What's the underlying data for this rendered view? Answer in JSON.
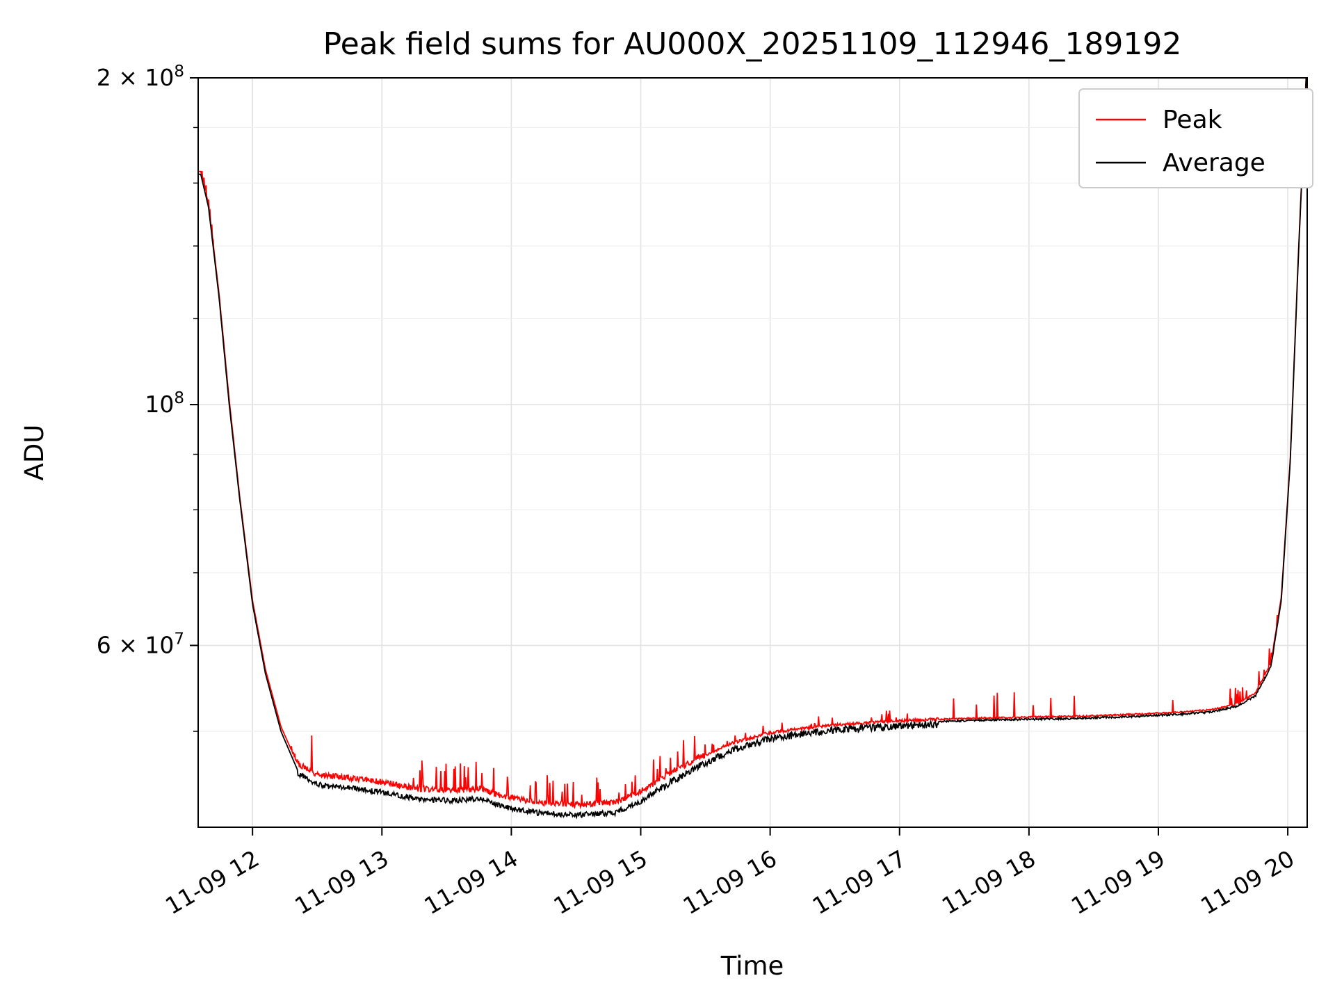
{
  "figure": {
    "title": "Peak field sums for AU000X_20251109_112946_189192",
    "xlabel": "Time",
    "ylabel": "ADU",
    "background": "#ffffff"
  },
  "chart_data": {
    "type": "line",
    "title": "Peak field sums for AU000X_20251109_112946_189192",
    "xlabel": "Time",
    "ylabel": "ADU",
    "x_axis": {
      "unit": "time of day on 11-09 (hours)",
      "range": [
        11.58,
        20.15
      ],
      "ticks": [
        {
          "value": 12,
          "label": "11-09 12"
        },
        {
          "value": 13,
          "label": "11-09 13"
        },
        {
          "value": 14,
          "label": "11-09 14"
        },
        {
          "value": 15,
          "label": "11-09 15"
        },
        {
          "value": 16,
          "label": "11-09 16"
        },
        {
          "value": 17,
          "label": "11-09 17"
        },
        {
          "value": 18,
          "label": "11-09 18"
        },
        {
          "value": 19,
          "label": "11-09 19"
        },
        {
          "value": 20,
          "label": "11-09 20"
        }
      ]
    },
    "y_axis": {
      "scale": "log",
      "range": [
        40800000.0,
        200000000.0
      ],
      "major_ticks": [
        {
          "value": 60000000.0,
          "coef": "6",
          "exp": "7"
        },
        {
          "value": 100000000.0,
          "coef": "",
          "exp": "8"
        },
        {
          "value": 200000000.0,
          "coef": "2",
          "exp": "8"
        }
      ],
      "minor_tick_values": [
        50000000.0,
        70000000.0,
        80000000.0,
        90000000.0,
        120000000.0,
        140000000.0,
        160000000.0,
        180000000.0
      ]
    },
    "series": [
      {
        "name": "Peak",
        "color": "#ff0000",
        "keypoints": [
          [
            11.6,
            164000000.0
          ],
          [
            11.66,
            153000000.0
          ],
          [
            11.74,
            127000000.0
          ],
          [
            11.82,
            101000000.0
          ],
          [
            11.9,
            82500000.0
          ],
          [
            12.0,
            66000000.0
          ],
          [
            12.1,
            57000000.0
          ],
          [
            12.22,
            50500000.0
          ],
          [
            12.35,
            46600000.0
          ],
          [
            12.5,
            45500000.0
          ],
          [
            12.75,
            45200000.0
          ],
          [
            13.0,
            44800000.0
          ],
          [
            13.25,
            44200000.0
          ],
          [
            13.55,
            44000000.0
          ],
          [
            13.75,
            44200000.0
          ],
          [
            13.95,
            43400000.0
          ],
          [
            14.2,
            42900000.0
          ],
          [
            14.5,
            42700000.0
          ],
          [
            14.8,
            42900000.0
          ],
          [
            15.0,
            43900000.0
          ],
          [
            15.2,
            45500000.0
          ],
          [
            15.45,
            47200000.0
          ],
          [
            15.7,
            48700000.0
          ],
          [
            16.0,
            49800000.0
          ],
          [
            16.4,
            50500000.0
          ],
          [
            16.8,
            50900000.0
          ],
          [
            17.2,
            51200000.0
          ],
          [
            17.6,
            51400000.0
          ],
          [
            18.0,
            51500000.0
          ],
          [
            18.4,
            51600000.0
          ],
          [
            18.8,
            51800000.0
          ],
          [
            19.1,
            52000000.0
          ],
          [
            19.4,
            52300000.0
          ],
          [
            19.6,
            52900000.0
          ],
          [
            19.75,
            54200000.0
          ],
          [
            19.87,
            57800000.0
          ],
          [
            19.95,
            66500000.0
          ],
          [
            20.02,
            89500000.0
          ],
          [
            20.08,
            136000000.0
          ],
          [
            20.15,
            211000000.0
          ]
        ],
        "noise": {
          "direction": "up",
          "jitter": [
            {
              "from": 12.3,
              "to": 15.5,
              "amp": 0.008
            },
            {
              "from": 15.5,
              "to": 17.3,
              "amp": 0.004
            },
            {
              "from": 17.3,
              "to": 19.9,
              "amp": 0.002
            }
          ],
          "spikes": [
            {
              "from": 11.6,
              "to": 11.7,
              "prob": 0.25,
              "amp": 0.02
            },
            {
              "from": 12.4,
              "to": 13.1,
              "prob": 0.05,
              "amp": 0.1
            },
            {
              "from": 13.1,
              "to": 15.5,
              "prob": 0.09,
              "amp": 0.06
            },
            {
              "from": 15.5,
              "to": 17.2,
              "prob": 0.04,
              "amp": 0.025
            },
            {
              "from": 17.2,
              "to": 19.55,
              "prob": 0.03,
              "amp": 0.06
            },
            {
              "from": 19.55,
              "to": 19.93,
              "prob": 0.12,
              "amp": 0.04
            }
          ]
        }
      },
      {
        "name": "Average",
        "color": "#000000",
        "keypoints": [
          [
            11.6,
            163000000.0
          ],
          [
            11.66,
            152000000.0
          ],
          [
            11.74,
            126000000.0
          ],
          [
            11.82,
            100000000.0
          ],
          [
            11.9,
            82000000.0
          ],
          [
            12.0,
            65500000.0
          ],
          [
            12.1,
            56500000.0
          ],
          [
            12.22,
            50000000.0
          ],
          [
            12.35,
            46000000.0
          ],
          [
            12.5,
            44900000.0
          ],
          [
            12.75,
            44600000.0
          ],
          [
            13.0,
            44200000.0
          ],
          [
            13.25,
            43600000.0
          ],
          [
            13.55,
            43400000.0
          ],
          [
            13.75,
            43600000.0
          ],
          [
            13.95,
            42800000.0
          ],
          [
            14.2,
            42300000.0
          ],
          [
            14.5,
            42100000.0
          ],
          [
            14.8,
            42300000.0
          ],
          [
            15.0,
            43300000.0
          ],
          [
            15.2,
            45000000.0
          ],
          [
            15.45,
            46800000.0
          ],
          [
            15.7,
            48400000.0
          ],
          [
            16.0,
            49600000.0
          ],
          [
            16.4,
            50400000.0
          ],
          [
            16.8,
            50800000.0
          ],
          [
            17.2,
            51100000.0
          ],
          [
            17.6,
            51300000.0
          ],
          [
            18.0,
            51400000.0
          ],
          [
            18.4,
            51500000.0
          ],
          [
            18.8,
            51700000.0
          ],
          [
            19.1,
            51900000.0
          ],
          [
            19.4,
            52200000.0
          ],
          [
            19.6,
            52800000.0
          ],
          [
            19.75,
            54000000.0
          ],
          [
            19.87,
            57500000.0
          ],
          [
            19.95,
            66000000.0
          ],
          [
            20.02,
            89000000.0
          ],
          [
            20.08,
            135000000.0
          ],
          [
            20.15,
            210000000.0
          ]
        ],
        "noise": {
          "direction": "down",
          "jitter": [
            {
              "from": 12.35,
              "to": 15.15,
              "amp": 0.011
            },
            {
              "from": 15.15,
              "to": 17.3,
              "amp": 0.015
            },
            {
              "from": 17.3,
              "to": 19.9,
              "amp": 0.004
            }
          ],
          "spikes": []
        }
      }
    ],
    "noise": {
      "seed": 42,
      "samples": 1700
    },
    "legend": {
      "position": "upper right",
      "entries": [
        {
          "label": "Peak",
          "color": "#ff0000"
        },
        {
          "label": "Average",
          "color": "#000000"
        }
      ]
    }
  }
}
